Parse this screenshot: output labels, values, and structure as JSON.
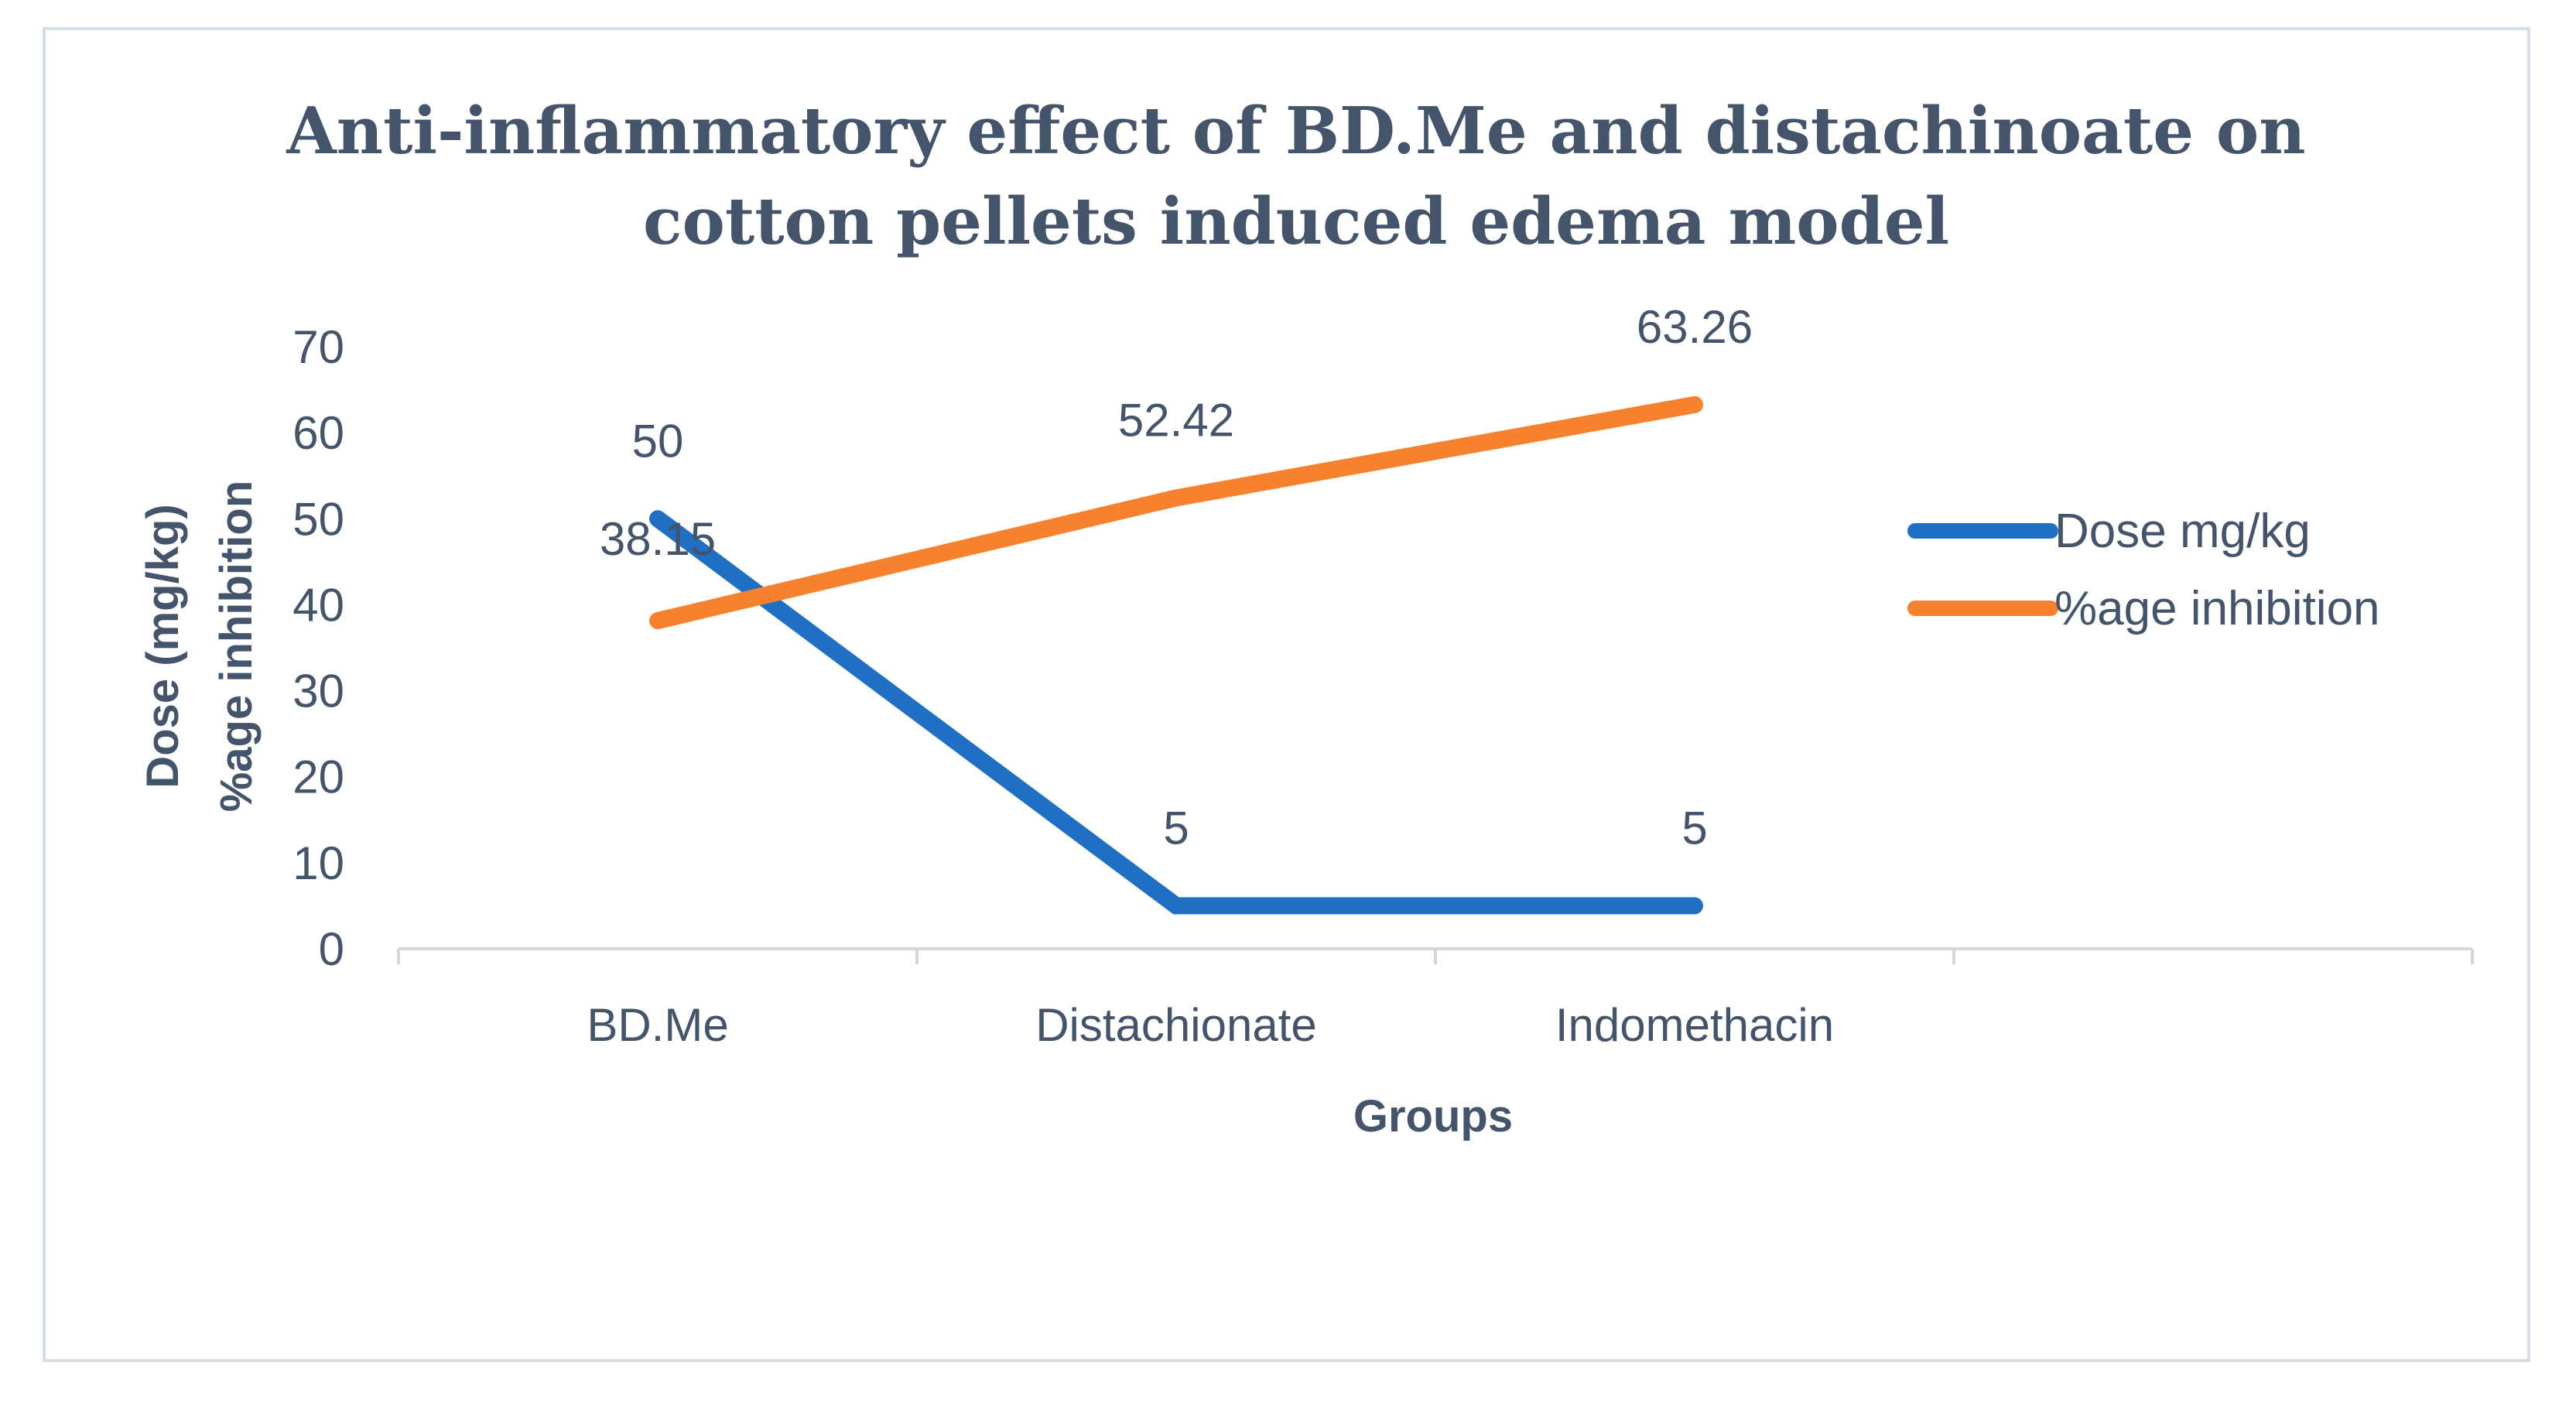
{
  "chart_data": {
    "type": "line",
    "title": [
      "Anti-inflammatory effect of BD.Me and distachinoate on",
      "cotton pellets induced edema model"
    ],
    "xlabel": "Groups",
    "ylabel": [
      "Dose (mg/kg)",
      "%age inhibition"
    ],
    "categories": [
      "BD.Me",
      "Distachionate",
      "Indomethacin"
    ],
    "category_slots": 4,
    "ylim": [
      0,
      70
    ],
    "yticks": [
      0,
      10,
      20,
      30,
      40,
      50,
      60,
      70
    ],
    "grid": false,
    "legend_position": "right",
    "series": [
      {
        "name": "Dose mg/kg",
        "color": "#1f6fc5",
        "values": [
          50,
          5,
          5
        ],
        "labels": [
          "50",
          "5",
          "5"
        ]
      },
      {
        "name": "%age inhibition",
        "color": "#f7822e",
        "values": [
          38.15,
          52.42,
          63.26
        ],
        "labels": [
          "38.15",
          "52.42",
          "63.26"
        ]
      }
    ]
  }
}
